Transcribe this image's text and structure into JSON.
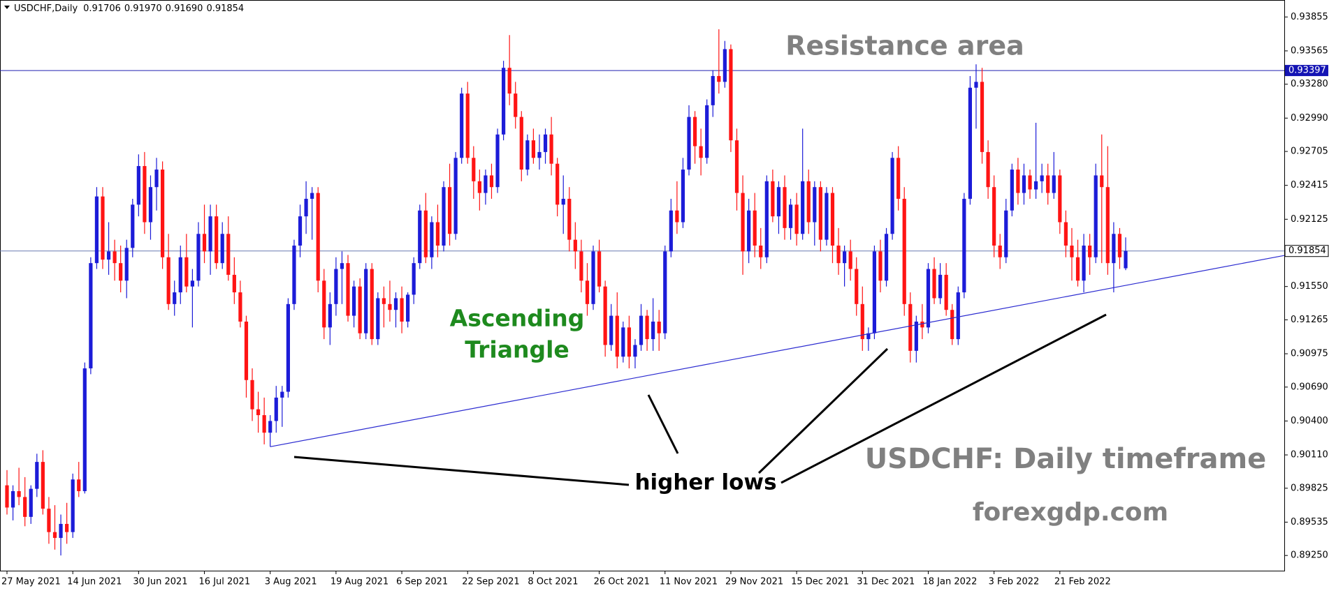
{
  "header": {
    "symbol": "USDCHF,Daily",
    "ohlc": [
      "0.91706",
      "0.91970",
      "0.91690",
      "0.91854"
    ]
  },
  "chart_data": {
    "type": "candlestick",
    "up_color": "#1c1cd8",
    "down_color": "#ff1414",
    "annotations": {
      "resistance": "Resistance area",
      "pattern": [
        "Ascending",
        "Triangle"
      ],
      "lows": "higher lows",
      "timeframe": "USDCHF: Daily timeframe",
      "site": "forexgdp.com"
    },
    "ylim": [
      0.8912,
      0.94
    ],
    "yticks": [
      0.93855,
      0.93565,
      {
        "value": 0.9328,
        "label": "0.93280"
      },
      {
        "value": 0.9299,
        "label": "0.92990"
      },
      0.92705,
      0.92415,
      0.92125,
      {
        "value": 0.9155,
        "label": "0.91550"
      },
      0.91265,
      0.90975,
      {
        "value": 0.9069,
        "label": "0.90690"
      },
      {
        "value": 0.904,
        "label": "0.90400"
      },
      {
        "value": 0.9011,
        "label": "0.90110"
      },
      0.89825,
      0.89535,
      {
        "value": 0.8925,
        "label": "0.89250"
      }
    ],
    "resistance_line": 0.93397,
    "price_line": 0.91854,
    "trendline": {
      "points": [
        [
          44,
          0.9018
        ],
        [
          186,
          0.9155
        ]
      ]
    },
    "categories": [
      "27 May 2021",
      null,
      null,
      null,
      null,
      null,
      null,
      null,
      null,
      null,
      null,
      "14 Jun 2021",
      null,
      null,
      null,
      null,
      null,
      null,
      null,
      null,
      null,
      null,
      "30 Jun 2021",
      null,
      null,
      null,
      null,
      null,
      null,
      null,
      null,
      null,
      null,
      "16 Jul 2021",
      null,
      null,
      null,
      null,
      null,
      null,
      null,
      null,
      null,
      null,
      "3 Aug 2021",
      null,
      null,
      null,
      null,
      null,
      null,
      null,
      null,
      null,
      null,
      "19 Aug 2021",
      null,
      null,
      null,
      null,
      null,
      null,
      null,
      null,
      null,
      null,
      "6 Sep 2021",
      null,
      null,
      null,
      null,
      null,
      null,
      null,
      null,
      null,
      null,
      "22 Sep 2021",
      null,
      null,
      null,
      null,
      null,
      null,
      null,
      null,
      null,
      null,
      "8 Oct 2021",
      null,
      null,
      null,
      null,
      null,
      null,
      null,
      null,
      null,
      null,
      "26 Oct 2021",
      null,
      null,
      null,
      null,
      null,
      null,
      null,
      null,
      null,
      null,
      "11 Nov 2021",
      null,
      null,
      null,
      null,
      null,
      null,
      null,
      null,
      null,
      null,
      "29 Nov 2021",
      null,
      null,
      null,
      null,
      null,
      null,
      null,
      null,
      null,
      null,
      "15 Dec 2021",
      null,
      null,
      null,
      null,
      null,
      null,
      null,
      null,
      null,
      null,
      "31 Dec 2021",
      null,
      null,
      null,
      null,
      null,
      null,
      null,
      null,
      null,
      null,
      "18 Jan 2022",
      null,
      null,
      null,
      null,
      null,
      null,
      null,
      null,
      null,
      null,
      "3 Feb 2022",
      null,
      null,
      null,
      null,
      null,
      null,
      null,
      null,
      null,
      null,
      "21 Feb 2022",
      null,
      null,
      null,
      null,
      null,
      null,
      null,
      null,
      null,
      null,
      null
    ],
    "candles": [
      [
        0.8985,
        0.8998,
        0.896,
        0.8966
      ],
      [
        0.8966,
        0.8985,
        0.8955,
        0.898
      ],
      [
        0.898,
        0.9,
        0.8968,
        0.8975
      ],
      [
        0.8975,
        0.8992,
        0.895,
        0.8958
      ],
      [
        0.8958,
        0.8985,
        0.8952,
        0.8982
      ],
      [
        0.8982,
        0.9012,
        0.8975,
        0.9005
      ],
      [
        0.9005,
        0.9015,
        0.896,
        0.8965
      ],
      [
        0.8965,
        0.8975,
        0.8935,
        0.8945
      ],
      [
        0.8945,
        0.8968,
        0.893,
        0.894
      ],
      [
        0.894,
        0.896,
        0.8925,
        0.8952
      ],
      [
        0.8952,
        0.897,
        0.8935,
        0.8945
      ],
      [
        0.8945,
        0.8995,
        0.894,
        0.899
      ],
      [
        0.899,
        0.9005,
        0.8975,
        0.898
      ],
      [
        0.898,
        0.909,
        0.8978,
        0.9085
      ],
      [
        0.9085,
        0.918,
        0.908,
        0.9175
      ],
      [
        0.9175,
        0.924,
        0.917,
        0.9232
      ],
      [
        0.9232,
        0.924,
        0.917,
        0.9178
      ],
      [
        0.9178,
        0.921,
        0.9165,
        0.9185
      ],
      [
        0.9185,
        0.9195,
        0.916,
        0.9175
      ],
      [
        0.9175,
        0.919,
        0.915,
        0.916
      ],
      [
        0.916,
        0.9195,
        0.9145,
        0.9188
      ],
      [
        0.9188,
        0.923,
        0.918,
        0.9225
      ],
      [
        0.9225,
        0.9268,
        0.9215,
        0.9258
      ],
      [
        0.9258,
        0.927,
        0.92,
        0.921
      ],
      [
        0.921,
        0.925,
        0.9195,
        0.924
      ],
      [
        0.924,
        0.9265,
        0.922,
        0.9255
      ],
      [
        0.9255,
        0.9262,
        0.917,
        0.918
      ],
      [
        0.918,
        0.92,
        0.9135,
        0.914
      ],
      [
        0.914,
        0.916,
        0.913,
        0.915
      ],
      [
        0.915,
        0.919,
        0.914,
        0.918
      ],
      [
        0.918,
        0.92,
        0.915,
        0.9155
      ],
      [
        0.9155,
        0.917,
        0.912,
        0.916
      ],
      [
        0.916,
        0.921,
        0.9155,
        0.92
      ],
      [
        0.92,
        0.9225,
        0.9175,
        0.9185
      ],
      [
        0.9185,
        0.9225,
        0.9165,
        0.9215
      ],
      [
        0.9215,
        0.9225,
        0.917,
        0.9175
      ],
      [
        0.9175,
        0.921,
        0.917,
        0.92
      ],
      [
        0.92,
        0.9215,
        0.916,
        0.9165
      ],
      [
        0.9165,
        0.918,
        0.914,
        0.915
      ],
      [
        0.915,
        0.916,
        0.912,
        0.9125
      ],
      [
        0.9125,
        0.913,
        0.906,
        0.9075
      ],
      [
        0.9075,
        0.9085,
        0.904,
        0.905
      ],
      [
        0.905,
        0.9065,
        0.903,
        0.9045
      ],
      [
        0.9045,
        0.906,
        0.902,
        0.903
      ],
      [
        0.903,
        0.9045,
        0.9018,
        0.904
      ],
      [
        0.904,
        0.907,
        0.903,
        0.906
      ],
      [
        0.906,
        0.907,
        0.9035,
        0.9065
      ],
      [
        0.9065,
        0.9145,
        0.906,
        0.914
      ],
      [
        0.914,
        0.9195,
        0.9135,
        0.919
      ],
      [
        0.919,
        0.9225,
        0.918,
        0.9215
      ],
      [
        0.9215,
        0.9245,
        0.92,
        0.923
      ],
      [
        0.923,
        0.924,
        0.9195,
        0.9235
      ],
      [
        0.9235,
        0.924,
        0.915,
        0.916
      ],
      [
        0.916,
        0.917,
        0.911,
        0.912
      ],
      [
        0.912,
        0.915,
        0.9105,
        0.914
      ],
      [
        0.914,
        0.918,
        0.913,
        0.917
      ],
      [
        0.917,
        0.9185,
        0.914,
        0.9175
      ],
      [
        0.9175,
        0.9182,
        0.9125,
        0.913
      ],
      [
        0.913,
        0.916,
        0.912,
        0.9155
      ],
      [
        0.9155,
        0.9162,
        0.911,
        0.9115
      ],
      [
        0.9115,
        0.9175,
        0.911,
        0.917
      ],
      [
        0.917,
        0.9175,
        0.9105,
        0.911
      ],
      [
        0.911,
        0.915,
        0.9105,
        0.9145
      ],
      [
        0.9145,
        0.9155,
        0.912,
        0.914
      ],
      [
        0.914,
        0.916,
        0.9125,
        0.9135
      ],
      [
        0.9135,
        0.915,
        0.912,
        0.9145
      ],
      [
        0.9145,
        0.9155,
        0.9115,
        0.9125
      ],
      [
        0.9125,
        0.915,
        0.912,
        0.9148
      ],
      [
        0.9148,
        0.918,
        0.914,
        0.9175
      ],
      [
        0.9175,
        0.9225,
        0.917,
        0.922
      ],
      [
        0.922,
        0.9235,
        0.9175,
        0.918
      ],
      [
        0.918,
        0.9215,
        0.917,
        0.921
      ],
      [
        0.921,
        0.9225,
        0.918,
        0.919
      ],
      [
        0.919,
        0.9245,
        0.9185,
        0.924
      ],
      [
        0.924,
        0.926,
        0.919,
        0.92
      ],
      [
        0.92,
        0.927,
        0.9195,
        0.9265
      ],
      [
        0.9265,
        0.9325,
        0.926,
        0.932
      ],
      [
        0.932,
        0.933,
        0.926,
        0.9265
      ],
      [
        0.9265,
        0.9275,
        0.923,
        0.9245
      ],
      [
        0.9245,
        0.9255,
        0.922,
        0.9235
      ],
      [
        0.9235,
        0.9255,
        0.9225,
        0.925
      ],
      [
        0.925,
        0.926,
        0.923,
        0.924
      ],
      [
        0.924,
        0.929,
        0.9235,
        0.9285
      ],
      [
        0.9285,
        0.9348,
        0.928,
        0.9342
      ],
      [
        0.9342,
        0.937,
        0.931,
        0.932
      ],
      [
        0.932,
        0.933,
        0.929,
        0.93
      ],
      [
        0.93,
        0.9305,
        0.9245,
        0.9255
      ],
      [
        0.9255,
        0.9285,
        0.925,
        0.928
      ],
      [
        0.928,
        0.929,
        0.926,
        0.9265
      ],
      [
        0.9265,
        0.9285,
        0.9255,
        0.927
      ],
      [
        0.927,
        0.929,
        0.926,
        0.9285
      ],
      [
        0.9285,
        0.93,
        0.925,
        0.926
      ],
      [
        0.926,
        0.9265,
        0.9215,
        0.9225
      ],
      [
        0.9225,
        0.925,
        0.92,
        0.923
      ],
      [
        0.923,
        0.924,
        0.9185,
        0.9195
      ],
      [
        0.9195,
        0.921,
        0.917,
        0.9185
      ],
      [
        0.9185,
        0.9195,
        0.915,
        0.916
      ],
      [
        0.916,
        0.9175,
        0.913,
        0.914
      ],
      [
        0.914,
        0.919,
        0.9135,
        0.9185
      ],
      [
        0.9185,
        0.9195,
        0.915,
        0.9155
      ],
      [
        0.9155,
        0.916,
        0.9095,
        0.9105
      ],
      [
        0.9105,
        0.914,
        0.91,
        0.913
      ],
      [
        0.913,
        0.915,
        0.9085,
        0.9095
      ],
      [
        0.9095,
        0.9125,
        0.909,
        0.912
      ],
      [
        0.912,
        0.913,
        0.9085,
        0.9095
      ],
      [
        0.9095,
        0.911,
        0.9085,
        0.9105
      ],
      [
        0.9105,
        0.914,
        0.91,
        0.913
      ],
      [
        0.913,
        0.9135,
        0.91,
        0.911
      ],
      [
        0.911,
        0.9145,
        0.91,
        0.9125
      ],
      [
        0.9125,
        0.9135,
        0.91,
        0.9115
      ],
      [
        0.9115,
        0.919,
        0.911,
        0.9185
      ],
      [
        0.9185,
        0.923,
        0.918,
        0.922
      ],
      [
        0.922,
        0.9245,
        0.92,
        0.921
      ],
      [
        0.921,
        0.9265,
        0.9205,
        0.9255
      ],
      [
        0.9255,
        0.931,
        0.925,
        0.93
      ],
      [
        0.93,
        0.9305,
        0.926,
        0.9275
      ],
      [
        0.9275,
        0.929,
        0.925,
        0.9265
      ],
      [
        0.9265,
        0.9315,
        0.926,
        0.931
      ],
      [
        0.931,
        0.934,
        0.93,
        0.9335
      ],
      [
        0.9335,
        0.9375,
        0.932,
        0.933
      ],
      [
        0.933,
        0.9365,
        0.9325,
        0.9358
      ],
      [
        0.9358,
        0.9362,
        0.927,
        0.928
      ],
      [
        0.928,
        0.929,
        0.922,
        0.9235
      ],
      [
        0.9235,
        0.925,
        0.9165,
        0.9185
      ],
      [
        0.9185,
        0.923,
        0.9175,
        0.922
      ],
      [
        0.922,
        0.9235,
        0.918,
        0.919
      ],
      [
        0.919,
        0.9205,
        0.917,
        0.918
      ],
      [
        0.918,
        0.925,
        0.9175,
        0.9245
      ],
      [
        0.9245,
        0.9255,
        0.921,
        0.9215
      ],
      [
        0.9215,
        0.9245,
        0.92,
        0.924
      ],
      [
        0.924,
        0.925,
        0.9195,
        0.9205
      ],
      [
        0.9205,
        0.923,
        0.9195,
        0.9225
      ],
      [
        0.9225,
        0.9235,
        0.919,
        0.92
      ],
      [
        0.92,
        0.929,
        0.9195,
        0.9245
      ],
      [
        0.9245,
        0.9255,
        0.92,
        0.921
      ],
      [
        0.921,
        0.9245,
        0.919,
        0.924
      ],
      [
        0.924,
        0.9245,
        0.9185,
        0.9195
      ],
      [
        0.9195,
        0.924,
        0.919,
        0.9235
      ],
      [
        0.9235,
        0.924,
        0.9175,
        0.919
      ],
      [
        0.919,
        0.9205,
        0.9165,
        0.9175
      ],
      [
        0.9175,
        0.919,
        0.9155,
        0.9185
      ],
      [
        0.9185,
        0.9195,
        0.916,
        0.917
      ],
      [
        0.917,
        0.918,
        0.913,
        0.914
      ],
      [
        0.914,
        0.9155,
        0.91,
        0.911
      ],
      [
        0.911,
        0.912,
        0.91,
        0.9115
      ],
      [
        0.9115,
        0.919,
        0.911,
        0.9185
      ],
      [
        0.9185,
        0.9195,
        0.915,
        0.916
      ],
      [
        0.916,
        0.9205,
        0.9155,
        0.92
      ],
      [
        0.92,
        0.927,
        0.9195,
        0.9265
      ],
      [
        0.9265,
        0.9275,
        0.922,
        0.923
      ],
      [
        0.923,
        0.924,
        0.913,
        0.914
      ],
      [
        0.914,
        0.915,
        0.909,
        0.91
      ],
      [
        0.91,
        0.913,
        0.909,
        0.9125
      ],
      [
        0.9125,
        0.914,
        0.911,
        0.912
      ],
      [
        0.912,
        0.9175,
        0.9115,
        0.917
      ],
      [
        0.917,
        0.918,
        0.914,
        0.9145
      ],
      [
        0.9145,
        0.9175,
        0.914,
        0.9165
      ],
      [
        0.9165,
        0.9175,
        0.913,
        0.9135
      ],
      [
        0.9135,
        0.914,
        0.9105,
        0.911
      ],
      [
        0.911,
        0.9155,
        0.9105,
        0.915
      ],
      [
        0.915,
        0.9235,
        0.9145,
        0.923
      ],
      [
        0.923,
        0.9335,
        0.9225,
        0.9325
      ],
      [
        0.9325,
        0.9345,
        0.929,
        0.933
      ],
      [
        0.933,
        0.9342,
        0.926,
        0.927
      ],
      [
        0.927,
        0.928,
        0.923,
        0.924
      ],
      [
        0.924,
        0.925,
        0.918,
        0.919
      ],
      [
        0.919,
        0.92,
        0.917,
        0.918
      ],
      [
        0.918,
        0.923,
        0.9175,
        0.922
      ],
      [
        0.922,
        0.926,
        0.9215,
        0.9255
      ],
      [
        0.9255,
        0.9265,
        0.9225,
        0.9235
      ],
      [
        0.9235,
        0.926,
        0.9225,
        0.925
      ],
      [
        0.925,
        0.9255,
        0.923,
        0.9238
      ],
      [
        0.9238,
        0.9295,
        0.923,
        0.9245
      ],
      [
        0.9245,
        0.926,
        0.9235,
        0.925
      ],
      [
        0.925,
        0.926,
        0.9225,
        0.9235
      ],
      [
        0.9235,
        0.927,
        0.923,
        0.925
      ],
      [
        0.925,
        0.9255,
        0.92,
        0.921
      ],
      [
        0.921,
        0.922,
        0.918,
        0.919
      ],
      [
        0.919,
        0.9205,
        0.916,
        0.918
      ],
      [
        0.918,
        0.9195,
        0.9155,
        0.916
      ],
      [
        0.916,
        0.92,
        0.915,
        0.919
      ],
      [
        0.919,
        0.92,
        0.9165,
        0.918
      ],
      [
        0.918,
        0.926,
        0.9175,
        0.925
      ],
      [
        0.925,
        0.9285,
        0.9175,
        0.924
      ],
      [
        0.924,
        0.9275,
        0.9165,
        0.9175
      ],
      [
        0.9175,
        0.921,
        0.915,
        0.92
      ],
      [
        0.92,
        0.9205,
        0.917,
        0.918
      ],
      [
        0.91706,
        0.9197,
        0.9169,
        0.91854
      ]
    ]
  }
}
